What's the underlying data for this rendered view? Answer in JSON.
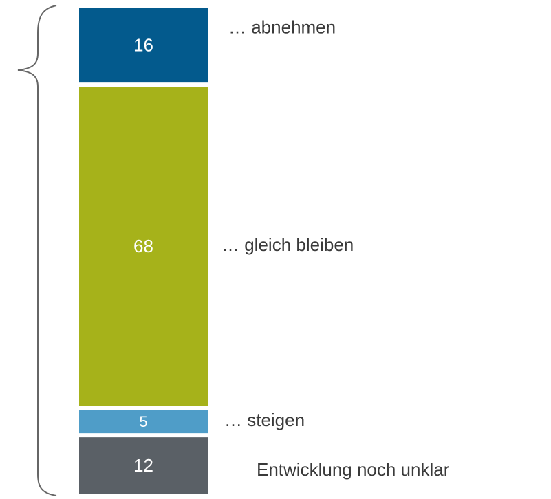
{
  "chart_data": {
    "type": "bar",
    "stacked": true,
    "categories": [
      null
    ],
    "series": [
      {
        "name": "Entwicklung noch unklar",
        "color": "#5a6066",
        "values": [
          12
        ]
      },
      {
        "name": "… steigen",
        "color": "#4f9dc8",
        "values": [
          5
        ]
      },
      {
        "name": "… gleich bleiben",
        "color": "#a6b21a",
        "values": [
          68
        ]
      },
      {
        "name": "… abnehmen",
        "color": "#035a8d",
        "values": [
          16
        ]
      }
    ]
  }
}
